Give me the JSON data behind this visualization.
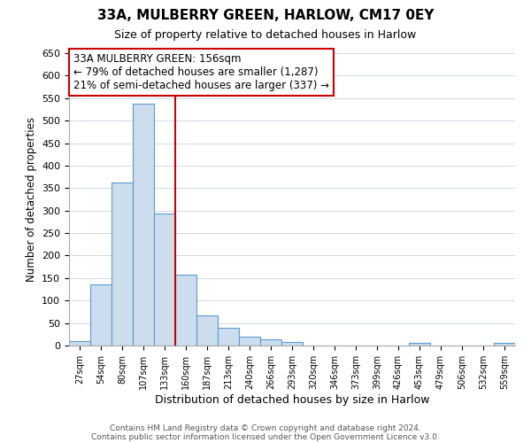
{
  "title": "33A, MULBERRY GREEN, HARLOW, CM17 0EY",
  "subtitle": "Size of property relative to detached houses in Harlow",
  "xlabel": "Distribution of detached houses by size in Harlow",
  "ylabel": "Number of detached properties",
  "bar_labels": [
    "27sqm",
    "54sqm",
    "80sqm",
    "107sqm",
    "133sqm",
    "160sqm",
    "187sqm",
    "213sqm",
    "240sqm",
    "266sqm",
    "293sqm",
    "320sqm",
    "346sqm",
    "373sqm",
    "399sqm",
    "426sqm",
    "453sqm",
    "479sqm",
    "506sqm",
    "532sqm",
    "559sqm"
  ],
  "bar_heights": [
    10,
    135,
    362,
    537,
    293,
    158,
    66,
    40,
    20,
    13,
    8,
    0,
    0,
    0,
    0,
    0,
    5,
    0,
    0,
    0,
    5
  ],
  "bar_color": "#ccdded",
  "bar_edge_color": "#5b9bd5",
  "vline_x_index": 5,
  "vline_color": "#cc0000",
  "ylim": [
    0,
    650
  ],
  "yticks": [
    0,
    50,
    100,
    150,
    200,
    250,
    300,
    350,
    400,
    450,
    500,
    550,
    600,
    650
  ],
  "annotation_title": "33A MULBERRY GREEN: 156sqm",
  "annotation_line1": "← 79% of detached houses are smaller (1,287)",
  "annotation_line2": "21% of semi-detached houses are larger (337) →",
  "annotation_box_color": "#ffffff",
  "annotation_box_edge": "#cc0000",
  "footer1": "Contains HM Land Registry data © Crown copyright and database right 2024.",
  "footer2": "Contains public sector information licensed under the Open Government Licence v3.0.",
  "background_color": "#ffffff",
  "grid_color": "#d0d8e8"
}
